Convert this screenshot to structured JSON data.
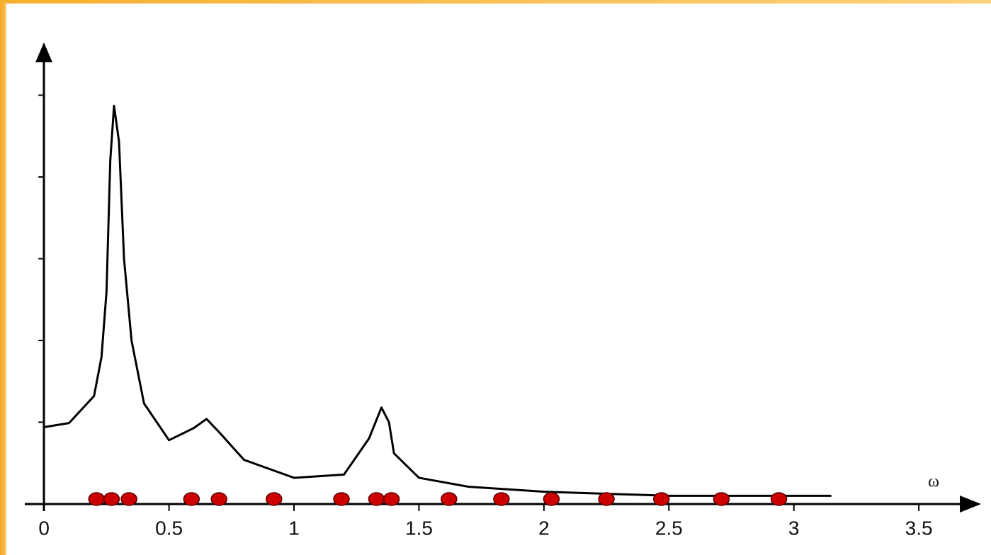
{
  "chart_data": {
    "type": "line",
    "x_label": "ω",
    "xlim": [
      -0.077,
      3.749
    ],
    "ylim": [
      -0.07,
      5.6
    ],
    "xticks": [
      0,
      0.5,
      1,
      1.5,
      2,
      2.5,
      3,
      3.5
    ],
    "yticks": [
      1,
      2,
      3,
      4,
      5
    ],
    "series": [
      {
        "type": "line",
        "color": "#000000",
        "x": [
          0,
          0.1,
          0.2,
          0.23,
          0.25,
          0.265,
          0.28,
          0.3,
          0.32,
          0.35,
          0.4,
          0.5,
          0.6,
          0.65,
          0.7,
          0.8,
          1.0,
          1.2,
          1.3,
          1.35,
          1.38,
          1.4,
          1.5,
          1.7,
          2.0,
          2.5,
          3.0,
          3.15
        ],
        "values": [
          0.94,
          0.99,
          1.32,
          1.8,
          2.6,
          4.2,
          4.87,
          4.43,
          3.0,
          2.0,
          1.23,
          0.78,
          0.93,
          1.04,
          0.88,
          0.54,
          0.32,
          0.36,
          0.8,
          1.18,
          1.0,
          0.62,
          0.32,
          0.21,
          0.15,
          0.1,
          0.1,
          0.1
        ]
      },
      {
        "type": "scatter",
        "color": "#cc0000",
        "x": [
          0.21,
          0.27,
          0.34,
          0.59,
          0.7,
          0.92,
          1.19,
          1.33,
          1.39,
          1.62,
          1.83,
          2.03,
          2.25,
          2.47,
          2.71,
          2.94
        ],
        "values": [
          0.06,
          0.06,
          0.06,
          0.06,
          0.06,
          0.06,
          0.06,
          0.06,
          0.06,
          0.06,
          0.06,
          0.06,
          0.06,
          0.06,
          0.06,
          0.06
        ]
      }
    ]
  }
}
